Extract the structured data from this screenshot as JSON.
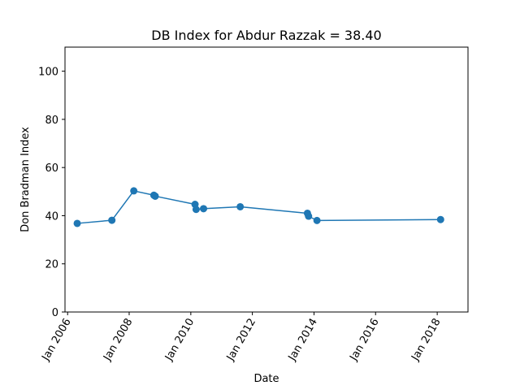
{
  "chart_data": {
    "type": "line",
    "title": "DB Index for Abdur Razzak = 38.40",
    "xlabel": "Date",
    "ylabel": "Don Bradman Index",
    "x_axis": {
      "kind": "date",
      "range": [
        "2005-12-01",
        "2019-01-01"
      ],
      "ticks": [
        "2006-01-01",
        "2008-01-01",
        "2010-01-01",
        "2012-01-01",
        "2014-01-01",
        "2016-01-01",
        "2018-01-01"
      ],
      "tick_labels": [
        "Jan 2006",
        "Jan 2008",
        "Jan 2010",
        "Jan 2012",
        "Jan 2014",
        "Jan 2016",
        "Jan 2018"
      ]
    },
    "y_axis": {
      "range": [
        0,
        110
      ],
      "ticks": [
        0,
        20,
        40,
        60,
        80,
        100
      ]
    },
    "grid": false,
    "legend": "none",
    "series": [
      {
        "color": "#1f77b4",
        "marker": "circle",
        "x": [
          "2006-04-25",
          "2007-06-10",
          "2008-02-25",
          "2008-10-20",
          "2008-11-05",
          "2010-02-20",
          "2010-03-05",
          "2010-06-01",
          "2011-08-10",
          "2013-10-15",
          "2013-10-28",
          "2014-02-05",
          "2018-02-10"
        ],
        "y": [
          36.8,
          38.1,
          50.3,
          48.5,
          48.1,
          44.7,
          42.6,
          42.9,
          43.7,
          41.0,
          39.8,
          38.0,
          38.4
        ]
      }
    ]
  }
}
